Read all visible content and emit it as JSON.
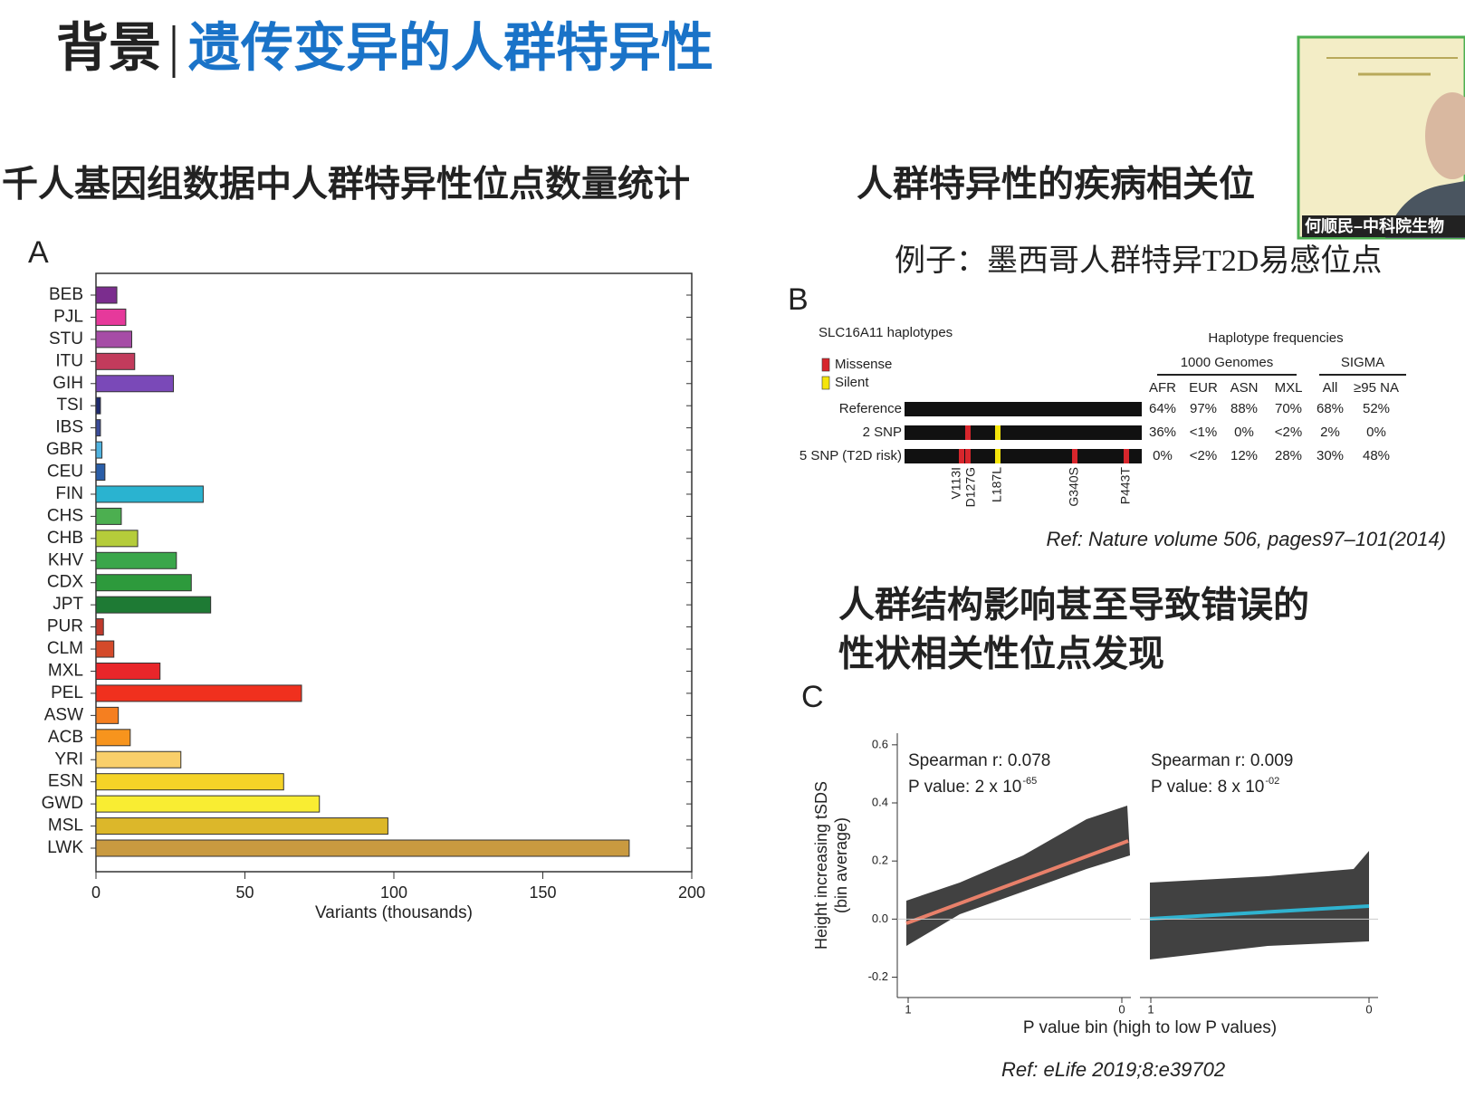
{
  "header": {
    "label": "背景",
    "title": "遗传变异的人群特异性"
  },
  "video": {
    "caption": "何顺民–中科院生物"
  },
  "sections": {
    "left": "千人基因组数据中人群特异性位点数量统计",
    "right": "人群特异性的疾病相关位",
    "example": "例子：墨西哥人群特异T2D易感位点",
    "structure": [
      "人群结构影响甚至导致错误的",
      "性状相关性位点发现"
    ]
  },
  "chart_data": {
    "type": "bar",
    "orientation": "horizontal",
    "panel": "A",
    "categories": [
      "BEB",
      "PJL",
      "STU",
      "ITU",
      "GIH",
      "TSI",
      "IBS",
      "GBR",
      "CEU",
      "FIN",
      "CHS",
      "CHB",
      "KHV",
      "CDX",
      "JPT",
      "PUR",
      "CLM",
      "MXL",
      "PEL",
      "ASW",
      "ACB",
      "YRI",
      "ESN",
      "GWD",
      "MSL",
      "LWK"
    ],
    "values": [
      7,
      10,
      12,
      13,
      26,
      1.5,
      1.5,
      2,
      3,
      36,
      8.5,
      14,
      27,
      32,
      38.5,
      2.5,
      6,
      21.5,
      69,
      7.5,
      11.5,
      28.5,
      63,
      75,
      98,
      179
    ],
    "colors": [
      "#7b2d8e",
      "#e6399b",
      "#a64ca6",
      "#c23b5c",
      "#7a49b8",
      "#1e2a6e",
      "#3b4c9a",
      "#4fb3e0",
      "#2a5ea8",
      "#2ab3d0",
      "#4caf50",
      "#b5cc3a",
      "#3aa64a",
      "#2d9a3c",
      "#1e7a34",
      "#c0392b",
      "#d44a2a",
      "#e8262a",
      "#f0301e",
      "#f57f20",
      "#f7941d",
      "#f9cf6a",
      "#f5d327",
      "#f9ed32",
      "#dcb72a",
      "#c99a40"
    ],
    "xlabel": "Variants (thousands)",
    "xlim": [
      0,
      200
    ],
    "xticks": [
      0,
      50,
      100,
      150,
      200
    ]
  },
  "panel_b": {
    "panel": "B",
    "title": "SLC16A11 haplotypes",
    "legend": [
      {
        "name": "Missense",
        "color": "#d7262c"
      },
      {
        "name": "Silent",
        "color": "#f5e50c"
      }
    ],
    "freq_title": "Haplotype frequencies",
    "groups": [
      "1000 Genomes",
      "SIGMA"
    ],
    "columns": [
      "AFR",
      "EUR",
      "ASN",
      "MXL",
      "All",
      "≥95 NA"
    ],
    "rows": [
      {
        "name": "Reference",
        "freqs": [
          "64%",
          "97%",
          "88%",
          "70%",
          "68%",
          "52%"
        ]
      },
      {
        "name": "2 SNP",
        "freqs": [
          "36%",
          "<1%",
          "0%",
          "<2%",
          "2%",
          "0%"
        ]
      },
      {
        "name": "5 SNP (T2D risk)",
        "freqs": [
          "0%",
          "<2%",
          "12%",
          "28%",
          "30%",
          "48%"
        ]
      }
    ],
    "variants": [
      "V113I",
      "D127G",
      "L187L",
      "G340S",
      "P443T"
    ],
    "ref": "Ref: Nature volume 506, pages97–101(2014)"
  },
  "panel_c": {
    "panel": "C",
    "ylabel": [
      "Height increasing tSDS",
      "(bin average)"
    ],
    "xlabel": "P value bin (high to low P values)",
    "ylim": [
      -0.27,
      0.64
    ],
    "yticks": [
      0.6,
      0.4,
      0.2,
      {
        "value": 0,
        "label": "0.0"
      },
      -0.2
    ],
    "xticks": [
      1,
      0
    ],
    "annotations": [
      {
        "r": "Spearman r: 0.078",
        "p": "P value: 2 x 10",
        "p_exp": "-65"
      },
      {
        "r": "Spearman r: 0.009",
        "p": "P value: 8 x 10",
        "p_exp": "-02"
      }
    ],
    "ref": "Ref:  eLife 2019;8:e39702"
  }
}
